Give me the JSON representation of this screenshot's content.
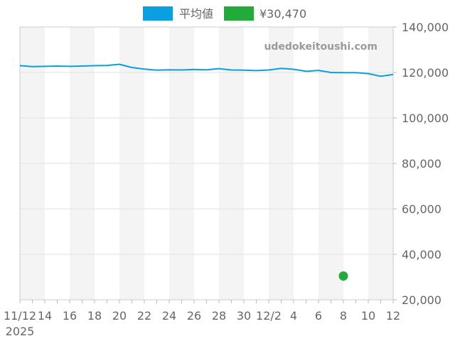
{
  "legend": {
    "avg_label": "平均値",
    "price_label": "¥30,470",
    "avg_color": "#0a9fe0",
    "price_color": "#22aa3b"
  },
  "watermark": "udedokeitoushi.com",
  "chart_data": {
    "type": "line",
    "title": "",
    "xlabel": "",
    "ylabel": "",
    "x_range": [
      "2025-11-12",
      "2025-12-12"
    ],
    "ylim": [
      20000,
      140000
    ],
    "y_ticks": [
      "20,000",
      "40,000",
      "60,000",
      "80,000",
      "100,000",
      "120,000",
      "140,000"
    ],
    "x_ticks": [
      {
        "date": "2025-11-12",
        "label": "11/12",
        "sub": "2025"
      },
      {
        "date": "2025-11-14",
        "label": "14"
      },
      {
        "date": "2025-11-16",
        "label": "16"
      },
      {
        "date": "2025-11-18",
        "label": "18"
      },
      {
        "date": "2025-11-20",
        "label": "20"
      },
      {
        "date": "2025-11-22",
        "label": "22"
      },
      {
        "date": "2025-11-24",
        "label": "24"
      },
      {
        "date": "2025-11-26",
        "label": "26"
      },
      {
        "date": "2025-11-28",
        "label": "28"
      },
      {
        "date": "2025-11-30",
        "label": "30"
      },
      {
        "date": "2025-12-02",
        "label": "12/2"
      },
      {
        "date": "2025-12-04",
        "label": "4"
      },
      {
        "date": "2025-12-06",
        "label": "6"
      },
      {
        "date": "2025-12-08",
        "label": "8"
      },
      {
        "date": "2025-12-10",
        "label": "10"
      },
      {
        "date": "2025-12-12",
        "label": "12"
      }
    ],
    "grid": true,
    "alternating_bands": true,
    "legend_position": "top-center",
    "y_axis_side": "right",
    "series": [
      {
        "name": "平均値",
        "type": "line",
        "color": "#0a9fe0",
        "points": [
          {
            "x": "2025-11-12",
            "y": 123000
          },
          {
            "x": "2025-11-13",
            "y": 122600
          },
          {
            "x": "2025-11-14",
            "y": 122700
          },
          {
            "x": "2025-11-15",
            "y": 122800
          },
          {
            "x": "2025-11-16",
            "y": 122700
          },
          {
            "x": "2025-11-17",
            "y": 122800
          },
          {
            "x": "2025-11-18",
            "y": 123000
          },
          {
            "x": "2025-11-19",
            "y": 123100
          },
          {
            "x": "2025-11-20",
            "y": 123600
          },
          {
            "x": "2025-11-21",
            "y": 122200
          },
          {
            "x": "2025-11-22",
            "y": 121500
          },
          {
            "x": "2025-11-23",
            "y": 121000
          },
          {
            "x": "2025-11-24",
            "y": 121200
          },
          {
            "x": "2025-11-25",
            "y": 121100
          },
          {
            "x": "2025-11-26",
            "y": 121300
          },
          {
            "x": "2025-11-27",
            "y": 121200
          },
          {
            "x": "2025-11-28",
            "y": 121700
          },
          {
            "x": "2025-11-29",
            "y": 121100
          },
          {
            "x": "2025-11-30",
            "y": 121000
          },
          {
            "x": "2025-12-01",
            "y": 120800
          },
          {
            "x": "2025-12-02",
            "y": 121100
          },
          {
            "x": "2025-12-03",
            "y": 121800
          },
          {
            "x": "2025-12-04",
            "y": 121400
          },
          {
            "x": "2025-12-05",
            "y": 120500
          },
          {
            "x": "2025-12-06",
            "y": 120900
          },
          {
            "x": "2025-12-07",
            "y": 120000
          },
          {
            "x": "2025-12-08",
            "y": 119900
          },
          {
            "x": "2025-12-09",
            "y": 119900
          },
          {
            "x": "2025-12-10",
            "y": 119500
          },
          {
            "x": "2025-12-11",
            "y": 118300
          },
          {
            "x": "2025-12-12",
            "y": 119100
          }
        ]
      },
      {
        "name": "¥30,470",
        "type": "scatter",
        "color": "#22aa3b",
        "points": [
          {
            "x": "2025-12-08",
            "y": 30470
          }
        ]
      }
    ]
  }
}
